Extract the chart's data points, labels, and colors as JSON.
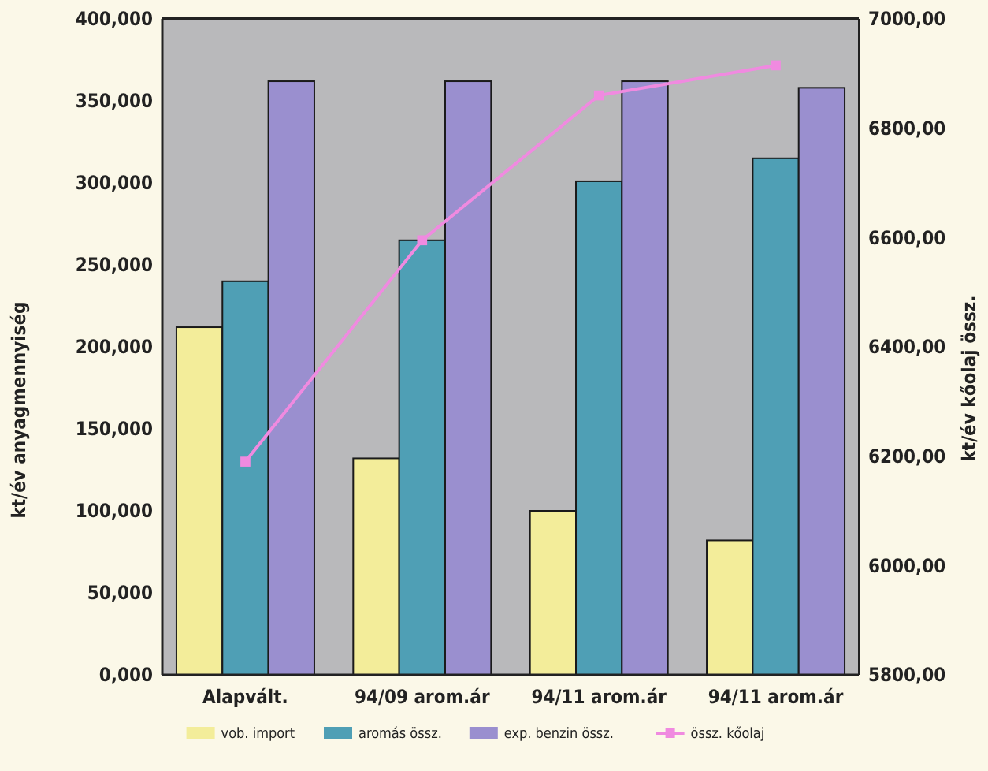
{
  "chart_data": {
    "type": "bar",
    "categories": [
      "Alapvált.",
      "94/09 arom.ár",
      "94/11 arom.ár",
      "94/11 arom.ár"
    ],
    "ylabel": "kt/év anyagmennyiség",
    "y2label": "kt/év kőolaj össz.",
    "ylim": [
      0,
      400
    ],
    "yticks": [
      {
        "value": 0,
        "label": "0,000"
      },
      {
        "value": 50,
        "label": "50,000"
      },
      {
        "value": 100,
        "label": "100,000"
      },
      {
        "value": 150,
        "label": "150,000"
      },
      {
        "value": 200,
        "label": "200,000"
      },
      {
        "value": 250,
        "label": "250,000"
      },
      {
        "value": 300,
        "label": "300,000"
      },
      {
        "value": 350,
        "label": "350,000"
      },
      {
        "value": 400,
        "label": "400,000"
      }
    ],
    "y2lim": [
      5800,
      7000
    ],
    "y2ticks": [
      {
        "value": 5800,
        "label": "5800,00"
      },
      {
        "value": 6000,
        "label": "6000,00"
      },
      {
        "value": 6200,
        "label": "6200,00"
      },
      {
        "value": 6400,
        "label": "6400,00"
      },
      {
        "value": 6600,
        "label": "6600,00"
      },
      {
        "value": 6800,
        "label": "6800,00"
      },
      {
        "value": 7000,
        "label": "7000,00"
      }
    ],
    "legend": "bottom",
    "marker": "square",
    "series": [
      {
        "name": "vob. import",
        "color": "#f3ed9a",
        "values": [
          212,
          132,
          100,
          82
        ]
      },
      {
        "name": "aromás össz.",
        "color": "#4f9fb5",
        "values": [
          240,
          265,
          301,
          315
        ]
      },
      {
        "name": "exp. benzin össz.",
        "color": "#9a8fcf",
        "values": [
          362,
          362,
          362,
          358
        ]
      },
      {
        "name": "össz. kőolaj",
        "color": "#f08ae0",
        "type": "line",
        "axis": "y2",
        "values": [
          6190,
          6595,
          6860,
          6915
        ]
      }
    ]
  }
}
